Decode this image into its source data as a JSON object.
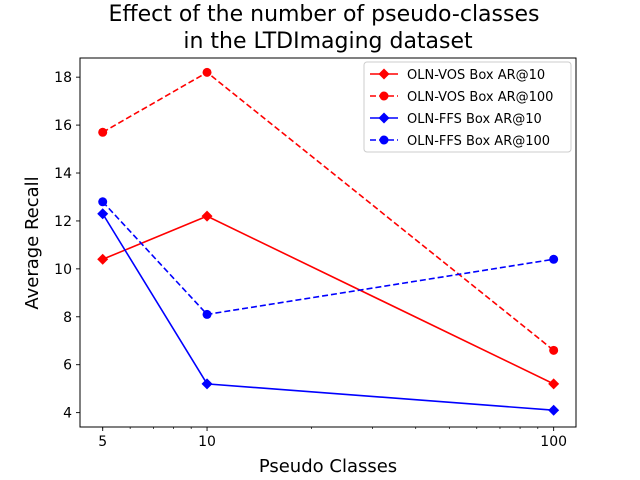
{
  "chart_data": {
    "type": "line",
    "title": [
      "Effect of the number of pseudo-classes",
      "in the LTDImaging dataset"
    ],
    "xlabel": "Pseudo Classes",
    "ylabel": "Average Recall",
    "xscale": "log",
    "x": [
      5,
      10,
      100
    ],
    "xticks": [
      "5",
      "10",
      "100"
    ],
    "xlim": [
      4.3,
      116
    ],
    "ylim": [
      3.4,
      18.8
    ],
    "yticks": [
      "4",
      "6",
      "8",
      "10",
      "12",
      "14",
      "16",
      "18"
    ],
    "ytick_values": [
      4,
      6,
      8,
      10,
      12,
      14,
      16,
      18
    ],
    "grid": false,
    "legend_position": "top-right",
    "series": [
      {
        "name": "OLN-VOS Box AR@10",
        "values": [
          10.4,
          12.2,
          5.2
        ],
        "color": "#ff0000",
        "linestyle": "solid",
        "marker": "diamond"
      },
      {
        "name": "OLN-VOS Box AR@100",
        "values": [
          15.7,
          18.2,
          6.6
        ],
        "color": "#ff0000",
        "linestyle": "dashed",
        "marker": "circle"
      },
      {
        "name": "OLN-FFS Box AR@10",
        "values": [
          12.3,
          5.2,
          4.1
        ],
        "color": "#0000ff",
        "linestyle": "solid",
        "marker": "diamond"
      },
      {
        "name": "OLN-FFS Box AR@100",
        "values": [
          12.8,
          8.1,
          10.4
        ],
        "color": "#0000ff",
        "linestyle": "dashed",
        "marker": "circle"
      }
    ]
  }
}
